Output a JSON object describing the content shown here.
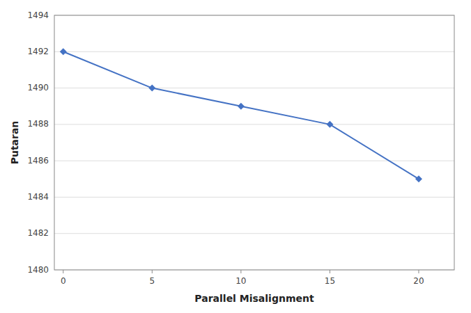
{
  "chart_data": {
    "type": "line",
    "x": [
      0,
      5,
      10,
      15,
      20
    ],
    "values": [
      1492,
      1490,
      1489,
      1488,
      1485
    ],
    "x_label": "Parallel Misalignment",
    "y_label": "Putaran",
    "xlim": [
      -0.5,
      22
    ],
    "ylim": [
      1480,
      1494
    ],
    "xticks": [
      0,
      5,
      10,
      15,
      20
    ],
    "yticks": [
      1480,
      1482,
      1484,
      1486,
      1488,
      1490,
      1492,
      1494
    ],
    "color": "#4472C4",
    "marker": "diamond",
    "grid": true
  }
}
